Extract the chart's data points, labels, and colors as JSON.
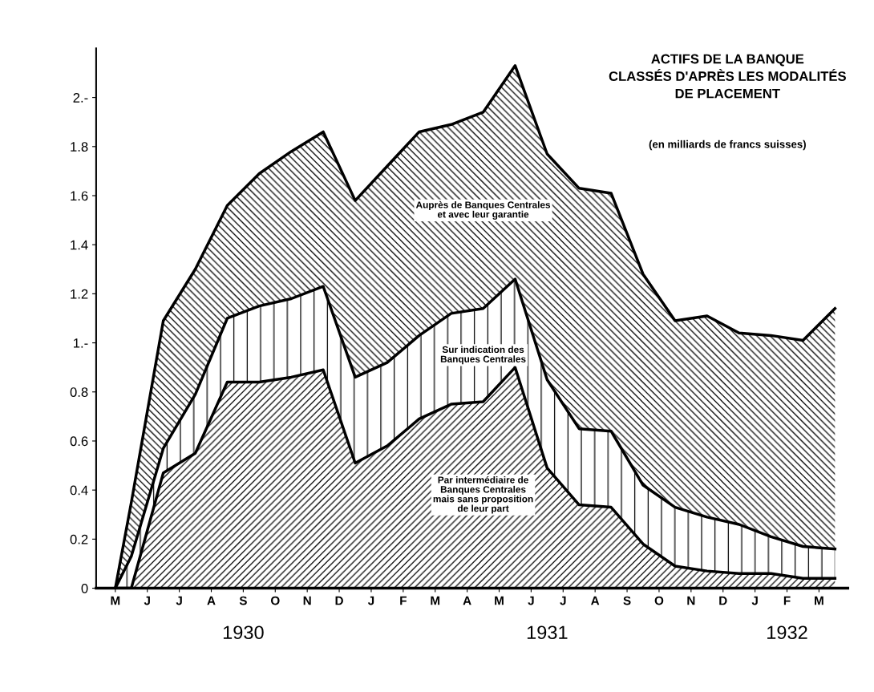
{
  "chart_data": {
    "type": "area",
    "stacked": true,
    "title": "ACTIFS DE LA BANQUE\nCLASSÉS D'APRÈS LES MODALITÉS\nDE PLACEMENT",
    "subtitle": "(en milliards de francs suisses)",
    "categories": [
      "M",
      null,
      "J",
      null,
      "J",
      null,
      "A",
      null,
      "S\n1930",
      null,
      "O",
      null,
      "N",
      null,
      "D",
      null,
      "J",
      null,
      "F",
      null,
      "M",
      null,
      "A",
      null,
      "M",
      null,
      "J",
      "\n1931",
      "J",
      null,
      "A",
      null,
      "S",
      null,
      "O",
      null,
      "N",
      null,
      "D",
      null,
      "J",
      null,
      "F\n1932",
      null,
      "M",
      null
    ],
    "series": [
      {
        "name": "Par intermédiaire de\nBanques Centrales\nmais sans proposition\nde leur part",
        "color": "#000000",
        "values": [
          0,
          0,
          null,
          0.47,
          null,
          0.55,
          null,
          0.84,
          null,
          0.84,
          null,
          0.86,
          null,
          0.89,
          null,
          0.51,
          null,
          0.58,
          null,
          0.69,
          null,
          0.75,
          null,
          0.76,
          null,
          0.9,
          null,
          0.49,
          null,
          0.34,
          null,
          0.33,
          null,
          0.18,
          null,
          0.09,
          null,
          0.07,
          null,
          0.06,
          null,
          0.06,
          null,
          0.04,
          null,
          0.04
        ]
      },
      {
        "name": "Sur indication des\nBanques Centrales",
        "color": "#000000",
        "values": [
          0,
          0.13,
          null,
          0.1,
          null,
          0.24,
          null,
          0.26,
          null,
          0.31,
          null,
          0.32,
          null,
          0.34,
          null,
          0.35,
          null,
          0.34,
          null,
          0.34,
          null,
          0.37,
          null,
          0.38,
          null,
          0.36,
          null,
          0.36,
          null,
          0.31,
          null,
          0.31,
          null,
          0.24,
          null,
          0.24,
          null,
          0.22,
          null,
          0.2,
          null,
          0.15,
          null,
          0.13,
          null,
          0.12
        ]
      },
      {
        "name": "Auprès de Banques Centrales\net avec leur garantie",
        "color": "#000000",
        "values": [
          0,
          0.22,
          null,
          0.52,
          null,
          0.51,
          null,
          0.46,
          null,
          0.54,
          null,
          0.6,
          null,
          0.63,
          null,
          0.72,
          null,
          0.8,
          null,
          0.83,
          null,
          0.77,
          null,
          0.8,
          null,
          0.87,
          null,
          0.92,
          null,
          0.98,
          null,
          0.97,
          null,
          0.86,
          null,
          0.76,
          null,
          0.82,
          null,
          0.78,
          null,
          0.82,
          null,
          0.84,
          null,
          0.98
        ]
      }
    ],
    "ylim": [
      0,
      2.2
    ],
    "yticks": [
      0,
      {
        "value": 0.2,
        "label": "0.2"
      },
      {
        "value": 0.4,
        "label": "0.4"
      },
      {
        "value": 0.6,
        "label": "0.6"
      },
      {
        "value": 0.8,
        "label": "0.8"
      },
      {
        "value": 1,
        "label": "1.-"
      },
      {
        "value": 1.2,
        "label": "1.2"
      },
      {
        "value": 1.4,
        "label": "1.4"
      },
      {
        "value": 1.6,
        "label": "1.6"
      },
      {
        "value": 1.8,
        "label": "1.8"
      },
      {
        "value": 2,
        "label": "2.-"
      }
    ],
    "grid": false,
    "legend": false
  }
}
